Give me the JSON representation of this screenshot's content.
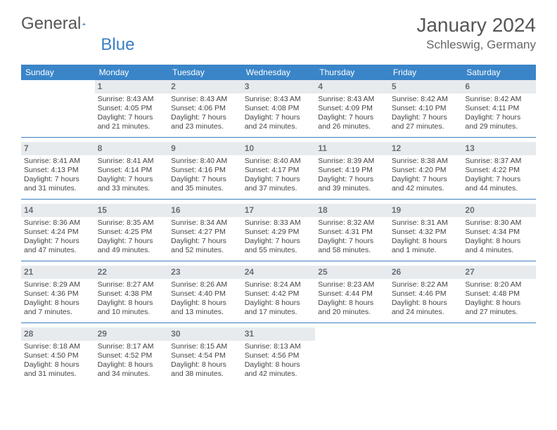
{
  "brand": {
    "part1": "General",
    "part2": "Blue"
  },
  "title": "January 2024",
  "location": "Schleswig, Germany",
  "colors": {
    "header_bg": "#3a85c8",
    "header_text": "#ffffff",
    "daynum_bg": "#e8ebee",
    "daynum_text": "#6a6f75",
    "border": "#3a7fc2",
    "body_text": "#444444",
    "page_bg": "#ffffff"
  },
  "daysOfWeek": [
    "Sunday",
    "Monday",
    "Tuesday",
    "Wednesday",
    "Thursday",
    "Friday",
    "Saturday"
  ],
  "weeks": [
    [
      {
        "empty": true
      },
      {
        "day": "1",
        "sunrise": "Sunrise: 8:43 AM",
        "sunset": "Sunset: 4:05 PM",
        "dl1": "Daylight: 7 hours",
        "dl2": "and 21 minutes."
      },
      {
        "day": "2",
        "sunrise": "Sunrise: 8:43 AM",
        "sunset": "Sunset: 4:06 PM",
        "dl1": "Daylight: 7 hours",
        "dl2": "and 23 minutes."
      },
      {
        "day": "3",
        "sunrise": "Sunrise: 8:43 AM",
        "sunset": "Sunset: 4:08 PM",
        "dl1": "Daylight: 7 hours",
        "dl2": "and 24 minutes."
      },
      {
        "day": "4",
        "sunrise": "Sunrise: 8:43 AM",
        "sunset": "Sunset: 4:09 PM",
        "dl1": "Daylight: 7 hours",
        "dl2": "and 26 minutes."
      },
      {
        "day": "5",
        "sunrise": "Sunrise: 8:42 AM",
        "sunset": "Sunset: 4:10 PM",
        "dl1": "Daylight: 7 hours",
        "dl2": "and 27 minutes."
      },
      {
        "day": "6",
        "sunrise": "Sunrise: 8:42 AM",
        "sunset": "Sunset: 4:11 PM",
        "dl1": "Daylight: 7 hours",
        "dl2": "and 29 minutes."
      }
    ],
    [
      {
        "day": "7",
        "sunrise": "Sunrise: 8:41 AM",
        "sunset": "Sunset: 4:13 PM",
        "dl1": "Daylight: 7 hours",
        "dl2": "and 31 minutes."
      },
      {
        "day": "8",
        "sunrise": "Sunrise: 8:41 AM",
        "sunset": "Sunset: 4:14 PM",
        "dl1": "Daylight: 7 hours",
        "dl2": "and 33 minutes."
      },
      {
        "day": "9",
        "sunrise": "Sunrise: 8:40 AM",
        "sunset": "Sunset: 4:16 PM",
        "dl1": "Daylight: 7 hours",
        "dl2": "and 35 minutes."
      },
      {
        "day": "10",
        "sunrise": "Sunrise: 8:40 AM",
        "sunset": "Sunset: 4:17 PM",
        "dl1": "Daylight: 7 hours",
        "dl2": "and 37 minutes."
      },
      {
        "day": "11",
        "sunrise": "Sunrise: 8:39 AM",
        "sunset": "Sunset: 4:19 PM",
        "dl1": "Daylight: 7 hours",
        "dl2": "and 39 minutes."
      },
      {
        "day": "12",
        "sunrise": "Sunrise: 8:38 AM",
        "sunset": "Sunset: 4:20 PM",
        "dl1": "Daylight: 7 hours",
        "dl2": "and 42 minutes."
      },
      {
        "day": "13",
        "sunrise": "Sunrise: 8:37 AM",
        "sunset": "Sunset: 4:22 PM",
        "dl1": "Daylight: 7 hours",
        "dl2": "and 44 minutes."
      }
    ],
    [
      {
        "day": "14",
        "sunrise": "Sunrise: 8:36 AM",
        "sunset": "Sunset: 4:24 PM",
        "dl1": "Daylight: 7 hours",
        "dl2": "and 47 minutes."
      },
      {
        "day": "15",
        "sunrise": "Sunrise: 8:35 AM",
        "sunset": "Sunset: 4:25 PM",
        "dl1": "Daylight: 7 hours",
        "dl2": "and 49 minutes."
      },
      {
        "day": "16",
        "sunrise": "Sunrise: 8:34 AM",
        "sunset": "Sunset: 4:27 PM",
        "dl1": "Daylight: 7 hours",
        "dl2": "and 52 minutes."
      },
      {
        "day": "17",
        "sunrise": "Sunrise: 8:33 AM",
        "sunset": "Sunset: 4:29 PM",
        "dl1": "Daylight: 7 hours",
        "dl2": "and 55 minutes."
      },
      {
        "day": "18",
        "sunrise": "Sunrise: 8:32 AM",
        "sunset": "Sunset: 4:31 PM",
        "dl1": "Daylight: 7 hours",
        "dl2": "and 58 minutes."
      },
      {
        "day": "19",
        "sunrise": "Sunrise: 8:31 AM",
        "sunset": "Sunset: 4:32 PM",
        "dl1": "Daylight: 8 hours",
        "dl2": "and 1 minute."
      },
      {
        "day": "20",
        "sunrise": "Sunrise: 8:30 AM",
        "sunset": "Sunset: 4:34 PM",
        "dl1": "Daylight: 8 hours",
        "dl2": "and 4 minutes."
      }
    ],
    [
      {
        "day": "21",
        "sunrise": "Sunrise: 8:29 AM",
        "sunset": "Sunset: 4:36 PM",
        "dl1": "Daylight: 8 hours",
        "dl2": "and 7 minutes."
      },
      {
        "day": "22",
        "sunrise": "Sunrise: 8:27 AM",
        "sunset": "Sunset: 4:38 PM",
        "dl1": "Daylight: 8 hours",
        "dl2": "and 10 minutes."
      },
      {
        "day": "23",
        "sunrise": "Sunrise: 8:26 AM",
        "sunset": "Sunset: 4:40 PM",
        "dl1": "Daylight: 8 hours",
        "dl2": "and 13 minutes."
      },
      {
        "day": "24",
        "sunrise": "Sunrise: 8:24 AM",
        "sunset": "Sunset: 4:42 PM",
        "dl1": "Daylight: 8 hours",
        "dl2": "and 17 minutes."
      },
      {
        "day": "25",
        "sunrise": "Sunrise: 8:23 AM",
        "sunset": "Sunset: 4:44 PM",
        "dl1": "Daylight: 8 hours",
        "dl2": "and 20 minutes."
      },
      {
        "day": "26",
        "sunrise": "Sunrise: 8:22 AM",
        "sunset": "Sunset: 4:46 PM",
        "dl1": "Daylight: 8 hours",
        "dl2": "and 24 minutes."
      },
      {
        "day": "27",
        "sunrise": "Sunrise: 8:20 AM",
        "sunset": "Sunset: 4:48 PM",
        "dl1": "Daylight: 8 hours",
        "dl2": "and 27 minutes."
      }
    ],
    [
      {
        "day": "28",
        "sunrise": "Sunrise: 8:18 AM",
        "sunset": "Sunset: 4:50 PM",
        "dl1": "Daylight: 8 hours",
        "dl2": "and 31 minutes."
      },
      {
        "day": "29",
        "sunrise": "Sunrise: 8:17 AM",
        "sunset": "Sunset: 4:52 PM",
        "dl1": "Daylight: 8 hours",
        "dl2": "and 34 minutes."
      },
      {
        "day": "30",
        "sunrise": "Sunrise: 8:15 AM",
        "sunset": "Sunset: 4:54 PM",
        "dl1": "Daylight: 8 hours",
        "dl2": "and 38 minutes."
      },
      {
        "day": "31",
        "sunrise": "Sunrise: 8:13 AM",
        "sunset": "Sunset: 4:56 PM",
        "dl1": "Daylight: 8 hours",
        "dl2": "and 42 minutes."
      },
      {
        "empty": true
      },
      {
        "empty": true
      },
      {
        "empty": true
      }
    ]
  ]
}
